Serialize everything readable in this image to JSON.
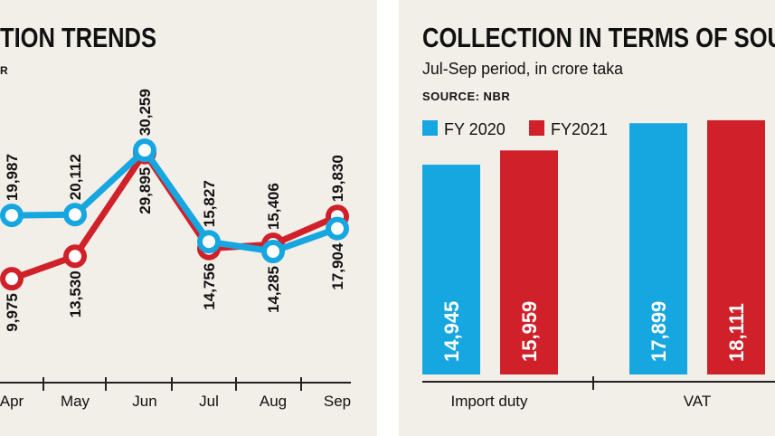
{
  "colors": {
    "background": "#f2efe8",
    "fy2020": "#16a6e0",
    "fy2021": "#d0202a",
    "text": "#111111"
  },
  "chart_data": [
    {
      "type": "line",
      "title": "TION TRENDS",
      "source": "R",
      "categories": [
        "Apr",
        "May",
        "Jun",
        "Jul",
        "Aug",
        "Sep"
      ],
      "series": [
        {
          "color": "#16a6e0",
          "values": [
            19987,
            20112,
            30259,
            15827,
            14285,
            17904
          ],
          "labels": [
            "19,987",
            "20,112",
            "30,259",
            "15,827",
            "14,285",
            "17,904"
          ]
        },
        {
          "color": "#d0202a",
          "values": [
            9975,
            13530,
            29895,
            14756,
            15406,
            19830
          ],
          "labels": [
            "9,975",
            "13,530",
            "29,895",
            "14,756",
            "15,406",
            "19,830"
          ]
        }
      ],
      "grid": false
    },
    {
      "type": "bar",
      "title": "COLLECTION IN TERMS OF SOU",
      "subtitle": "Jul-Sep period, in crore taka",
      "source": "SOURCE: NBR",
      "legend": {
        "placement": "top-left",
        "entries": [
          "FY 2020",
          "FY2021"
        ]
      },
      "categories": [
        "Import duty",
        "VAT"
      ],
      "series": [
        {
          "name": "FY 2020",
          "color": "#16a6e0",
          "values": [
            14945,
            17899
          ],
          "labels": [
            "14,945",
            "17,899"
          ]
        },
        {
          "name": "FY2021",
          "color": "#d0202a",
          "values": [
            15959,
            18111
          ],
          "labels": [
            "15,959",
            "18,111"
          ]
        }
      ],
      "grid": false
    }
  ]
}
